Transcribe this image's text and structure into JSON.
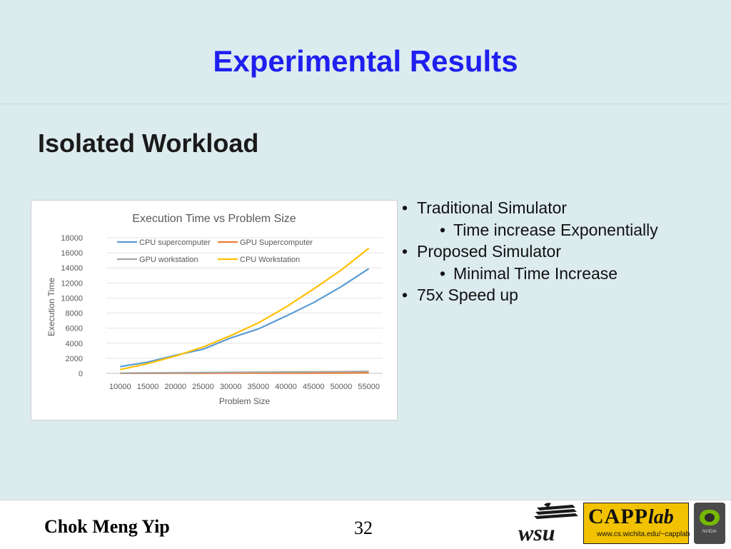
{
  "slide": {
    "title": "Experimental Results",
    "subtitle": "Isolated Workload",
    "bullets": [
      {
        "level": 1,
        "text": "Traditional Simulator"
      },
      {
        "level": 2,
        "text": "Time increase Exponentially"
      },
      {
        "level": 1,
        "text": "Proposed Simulator"
      },
      {
        "level": 2,
        "text": "Minimal Time Increase"
      },
      {
        "level": 1,
        "text": "75x Speed up"
      }
    ],
    "bullet_glyph": "•"
  },
  "footer": {
    "presenter": "Chok Meng Yip",
    "page_number": "32",
    "capp_logo_text": "CAPP",
    "capp_logo_italic": "lab",
    "capp_url": "www.cs.wichita.edu/~capplab",
    "nvidia_text": "NVIDIA"
  },
  "chart_data": {
    "type": "line",
    "title": "Execution Time vs Problem Size",
    "xlabel": "Problem Size",
    "ylabel": "Execution Time",
    "ylim": [
      0,
      18000
    ],
    "yticks": [
      0,
      2000,
      4000,
      6000,
      8000,
      10000,
      12000,
      14000,
      16000,
      18000
    ],
    "x": [
      "10000",
      "15000",
      "20000",
      "25000",
      "30000",
      "35000",
      "40000",
      "45000",
      "50000",
      "55000"
    ],
    "grid": true,
    "legend_position": "top-left",
    "series": [
      {
        "name": "CPU supercomputer",
        "color": "#5b9bd5",
        "values": [
          900,
          1500,
          2400,
          3200,
          4700,
          5900,
          7600,
          9400,
          11500,
          13900
        ]
      },
      {
        "name": "GPU Supercomputer",
        "color": "#ed7d31",
        "values": [
          10,
          12,
          15,
          20,
          25,
          30,
          35,
          40,
          50,
          60
        ]
      },
      {
        "name": "GPU workstation",
        "color": "#a5a5a5",
        "values": [
          40,
          60,
          90,
          110,
          140,
          160,
          180,
          200,
          230,
          260
        ]
      },
      {
        "name": "CPU Workstation",
        "color": "#ffc000",
        "values": [
          500,
          1300,
          2300,
          3500,
          5000,
          6700,
          8800,
          11200,
          13700,
          16600
        ]
      }
    ]
  }
}
